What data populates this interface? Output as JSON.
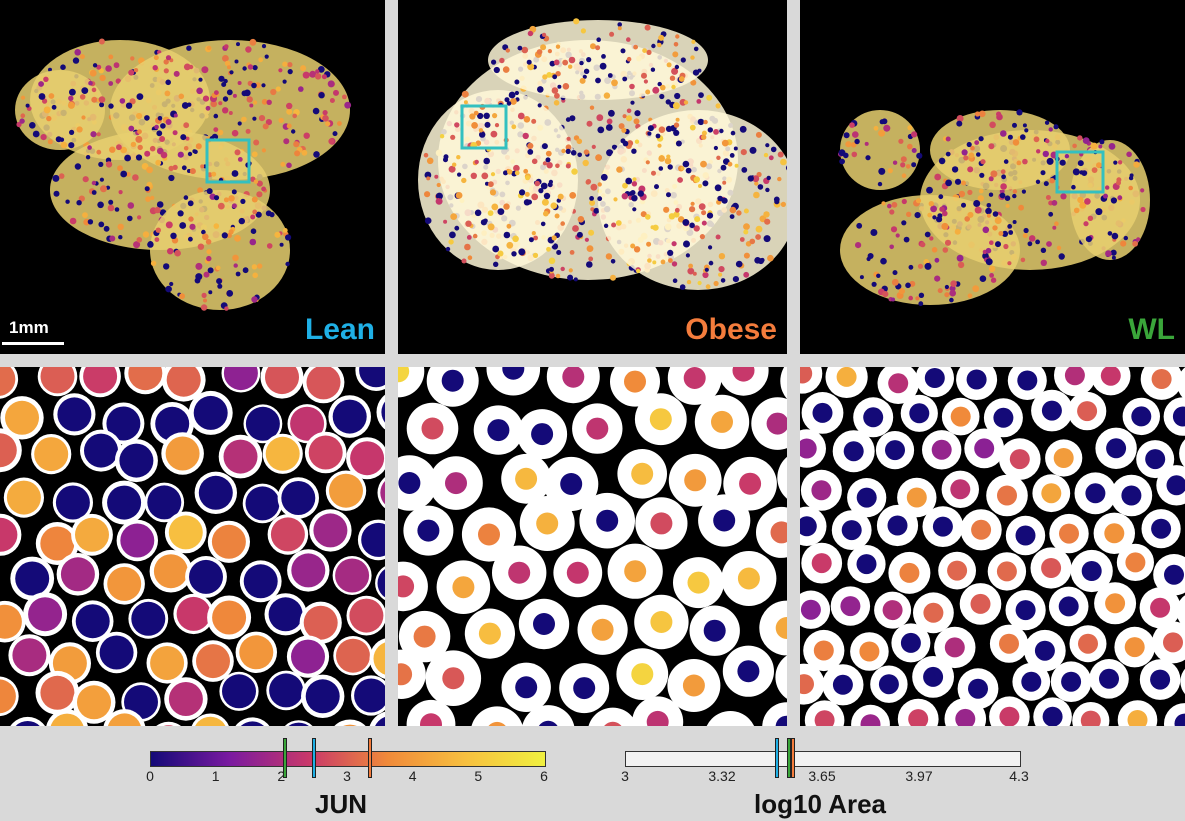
{
  "panels": [
    {
      "label": "Lean",
      "color": "#1fb0e6"
    },
    {
      "label": "Obese",
      "color": "#f47c3c"
    },
    {
      "label": "WL",
      "color": "#3aa63a"
    }
  ],
  "scale_bar": {
    "text": "1mm"
  },
  "colorbar_jun": {
    "title": "JUN",
    "range": [
      0,
      6
    ],
    "ticks": [
      "0",
      "1",
      "2",
      "3",
      "4",
      "5",
      "6"
    ],
    "gradient": [
      "#140a78",
      "#7a1aa0",
      "#c8386a",
      "#f08a3a",
      "#f7c040",
      "#f0f040"
    ],
    "markers": [
      {
        "group": "WL",
        "value": 2.06,
        "color": "#3aa63a"
      },
      {
        "group": "Lean",
        "value": 2.5,
        "color": "#1fb0e6"
      },
      {
        "group": "Obese",
        "value": 3.35,
        "color": "#f47c3c"
      }
    ]
  },
  "colorbar_area": {
    "title": "log10 Area",
    "range": [
      3,
      4.3
    ],
    "ticks": [
      "3",
      "3.32",
      "3.65",
      "3.97",
      "4.3"
    ],
    "fill": "#f2f2f2",
    "markers": [
      {
        "group": "Lean",
        "value": 3.5,
        "color": "#1fb0e6"
      },
      {
        "group": "WL",
        "value": 3.54,
        "color": "#3aa63a"
      },
      {
        "group": "Obese",
        "value": 3.555,
        "color": "#f47c3c"
      }
    ]
  },
  "colors": {
    "roi_box": "#33c0c0",
    "background": "#d9d9d9"
  }
}
